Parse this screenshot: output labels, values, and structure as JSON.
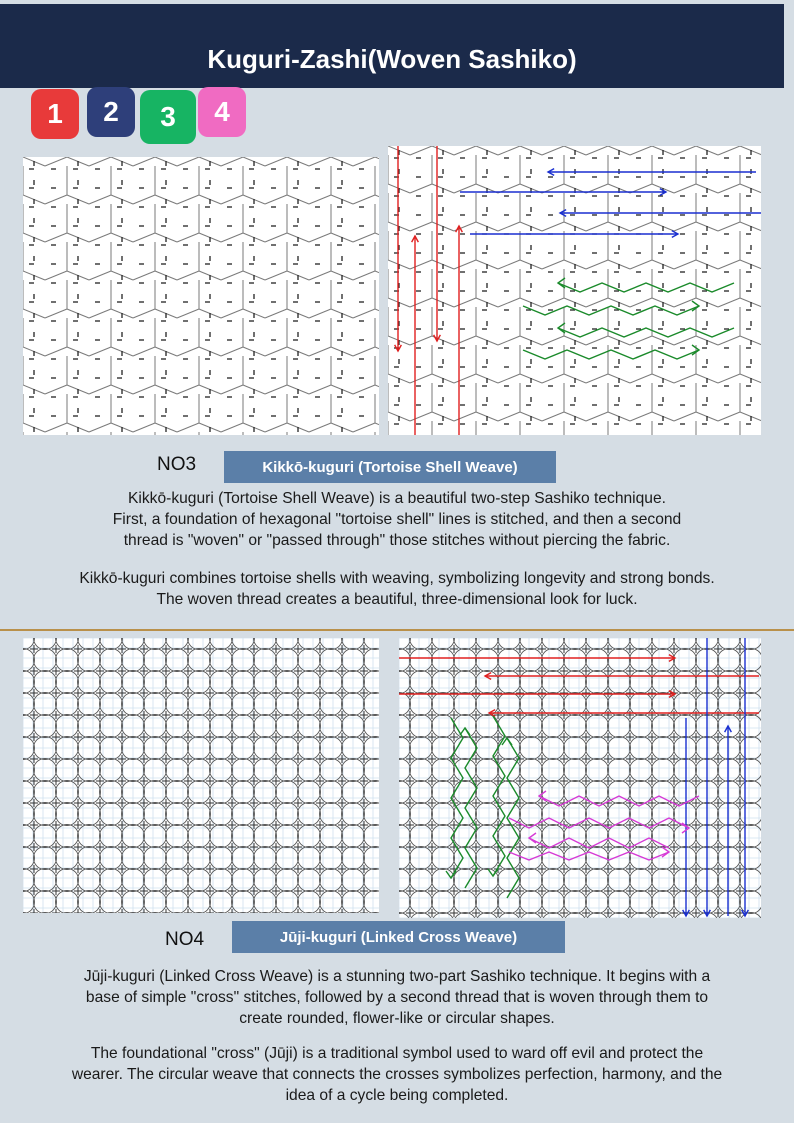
{
  "header": {
    "title": "Kuguri-Zashi(Woven Sashiko)"
  },
  "tabs": [
    {
      "label": "1",
      "color": "#e83a3a"
    },
    {
      "label": "2",
      "color": "#2e3f7a"
    },
    {
      "label": "3",
      "color": "#17b463"
    },
    {
      "label": "4",
      "color": "#f06bc2"
    }
  ],
  "section3": {
    "number_label": "NO3",
    "title": "Kikkō-kuguri (Tortoise Shell Weave)",
    "para1": [
      "Kikkō-kuguri (Tortoise Shell Weave) is a beautiful two-step Sashiko technique.",
      "First, a foundation of hexagonal \"tortoise shell\" lines is stitched, and then a second",
      "thread is \"woven\" or \"passed through\" those stitches without piercing the fabric."
    ],
    "para2": [
      "Kikkō-kuguri combines tortoise shells with weaving, symbolizing longevity and strong bonds.",
      "The woven thread creates a beautiful, three-dimensional look for luck."
    ]
  },
  "section4": {
    "number_label": "NO4",
    "title": "Jūji-kuguri (Linked Cross Weave)",
    "para1": [
      "Jūji-kuguri (Linked Cross Weave) is a stunning two-part Sashiko technique. It begins with a",
      "base of simple \"cross\" stitches, followed by a second thread that is woven through them to",
      "create rounded, flower-like or circular shapes."
    ],
    "para2": [
      "The foundational \"cross\" (Jūji) is a traditional symbol used to ward off evil and protect the",
      "wearer. The circular weave that connects the crosses symbolizes perfection, harmony, and the",
      "idea of a cycle being completed."
    ]
  },
  "colors": {
    "header_bg": "#1b2a4a",
    "title_box": "#5b7fa8",
    "thread_red": "#e02020",
    "thread_blue": "#1a2fd0",
    "thread_green": "#1a8a2a",
    "thread_magenta": "#d63ad6"
  }
}
